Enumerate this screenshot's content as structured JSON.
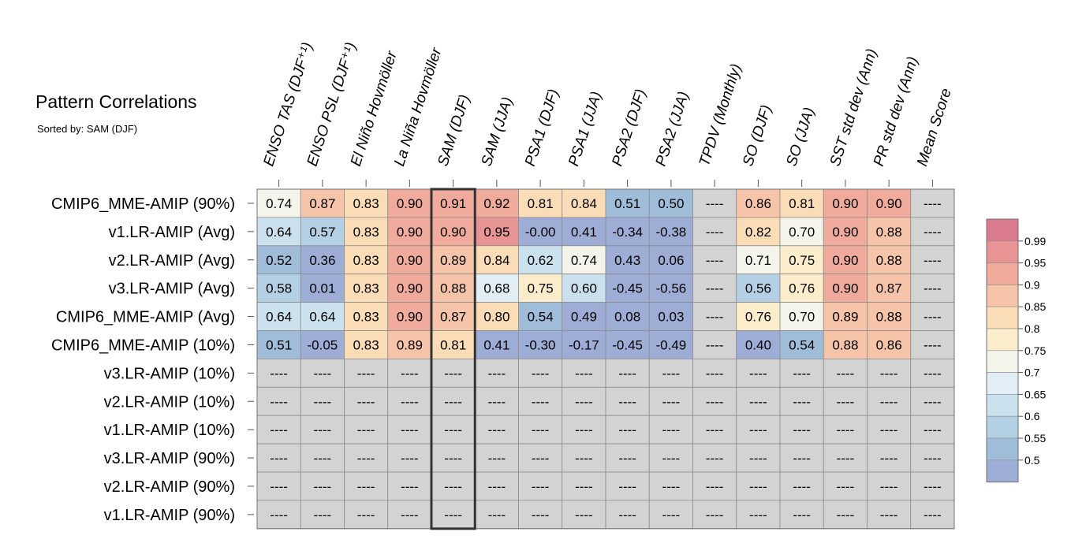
{
  "title": "Pattern Correlations",
  "subtitle": "Sorted by: SAM (DJF)",
  "highlight_column": 4,
  "chart_data": {
    "type": "heatmap",
    "columns": [
      "ENSO TAS (DJF⁺¹)",
      "ENSO PSL (DJF⁺¹)",
      "El Niño Hovmöller",
      "La Niña Hovmöller",
      "SAM (DJF)",
      "SAM (JJA)",
      "PSA1 (DJF)",
      "PSA1 (JJA)",
      "PSA2 (DJF)",
      "PSA2 (JJA)",
      "TPDV (Monthly)",
      "SO (DJF)",
      "SO (JJA)",
      "SST std dev (Ann)",
      "PR std dev (Ann)",
      "Mean Score"
    ],
    "rows": [
      {
        "label": "CMIP6_MME-AMIP (90%)",
        "values": [
          "0.74",
          "0.87",
          "0.83",
          "0.90",
          "0.91",
          "0.92",
          "0.81",
          "0.84",
          "0.51",
          "0.50",
          "----",
          "0.86",
          "0.81",
          "0.90",
          "0.90",
          "----"
        ]
      },
      {
        "label": "v1.LR-AMIP (Avg)",
        "values": [
          "0.64",
          "0.57",
          "0.83",
          "0.90",
          "0.90",
          "0.95",
          "-0.00",
          "0.41",
          "-0.34",
          "-0.38",
          "----",
          "0.82",
          "0.70",
          "0.90",
          "0.88",
          "----"
        ]
      },
      {
        "label": "v2.LR-AMIP (Avg)",
        "values": [
          "0.52",
          "0.36",
          "0.83",
          "0.90",
          "0.89",
          "0.84",
          "0.62",
          "0.74",
          "0.43",
          "0.06",
          "----",
          "0.71",
          "0.75",
          "0.90",
          "0.88",
          "----"
        ]
      },
      {
        "label": "v3.LR-AMIP (Avg)",
        "values": [
          "0.58",
          "0.01",
          "0.83",
          "0.90",
          "0.88",
          "0.68",
          "0.75",
          "0.60",
          "-0.45",
          "-0.56",
          "----",
          "0.56",
          "0.76",
          "0.90",
          "0.87",
          "----"
        ]
      },
      {
        "label": "CMIP6_MME-AMIP (Avg)",
        "values": [
          "0.64",
          "0.64",
          "0.83",
          "0.90",
          "0.87",
          "0.80",
          "0.54",
          "0.49",
          "0.08",
          "0.03",
          "----",
          "0.76",
          "0.70",
          "0.89",
          "0.88",
          "----"
        ]
      },
      {
        "label": "CMIP6_MME-AMIP (10%)",
        "values": [
          "0.51",
          "-0.05",
          "0.83",
          "0.89",
          "0.81",
          "0.41",
          "-0.30",
          "-0.17",
          "-0.45",
          "-0.49",
          "----",
          "0.40",
          "0.54",
          "0.88",
          "0.86",
          "----"
        ]
      },
      {
        "label": "v3.LR-AMIP (10%)",
        "values": [
          "----",
          "----",
          "----",
          "----",
          "----",
          "----",
          "----",
          "----",
          "----",
          "----",
          "----",
          "----",
          "----",
          "----",
          "----",
          "----"
        ]
      },
      {
        "label": "v2.LR-AMIP (10%)",
        "values": [
          "----",
          "----",
          "----",
          "----",
          "----",
          "----",
          "----",
          "----",
          "----",
          "----",
          "----",
          "----",
          "----",
          "----",
          "----",
          "----"
        ]
      },
      {
        "label": "v1.LR-AMIP (10%)",
        "values": [
          "----",
          "----",
          "----",
          "----",
          "----",
          "----",
          "----",
          "----",
          "----",
          "----",
          "----",
          "----",
          "----",
          "----",
          "----",
          "----"
        ]
      },
      {
        "label": "v3.LR-AMIP (90%)",
        "values": [
          "----",
          "----",
          "----",
          "----",
          "----",
          "----",
          "----",
          "----",
          "----",
          "----",
          "----",
          "----",
          "----",
          "----",
          "----",
          "----"
        ]
      },
      {
        "label": "v2.LR-AMIP (90%)",
        "values": [
          "----",
          "----",
          "----",
          "----",
          "----",
          "----",
          "----",
          "----",
          "----",
          "----",
          "----",
          "----",
          "----",
          "----",
          "----",
          "----"
        ]
      },
      {
        "label": "v1.LR-AMIP (90%)",
        "values": [
          "----",
          "----",
          "----",
          "----",
          "----",
          "----",
          "----",
          "----",
          "----",
          "----",
          "----",
          "----",
          "----",
          "----",
          "----",
          "----"
        ]
      }
    ],
    "missing_color": "#d3d3d3",
    "colorbar": {
      "tick_labels": [
        "0.99",
        "0.95",
        "0.9",
        "0.85",
        "0.8",
        "0.75",
        "0.7",
        "0.65",
        "0.6",
        "0.55",
        "0.5"
      ],
      "bins": [
        {
          "range": ">0.99",
          "color": "#d97a8f"
        },
        {
          "range": "0.95-0.99",
          "color": "#e89494"
        },
        {
          "range": "0.90-0.95",
          "color": "#f0ab9d"
        },
        {
          "range": "0.85-0.90",
          "color": "#f6c4a8"
        },
        {
          "range": "0.80-0.85",
          "color": "#fadcb7"
        },
        {
          "range": "0.75-0.80",
          "color": "#fbeccb"
        },
        {
          "range": "0.70-0.75",
          "color": "#f4f4ea"
        },
        {
          "range": "0.65-0.70",
          "color": "#e1eef5"
        },
        {
          "range": "0.60-0.65",
          "color": "#cbe2ee"
        },
        {
          "range": "0.55-0.60",
          "color": "#b4d0e5"
        },
        {
          "range": "0.50-0.55",
          "color": "#9fbcd9"
        },
        {
          "range": "<0.50",
          "color": "#9eadd6"
        }
      ]
    }
  }
}
